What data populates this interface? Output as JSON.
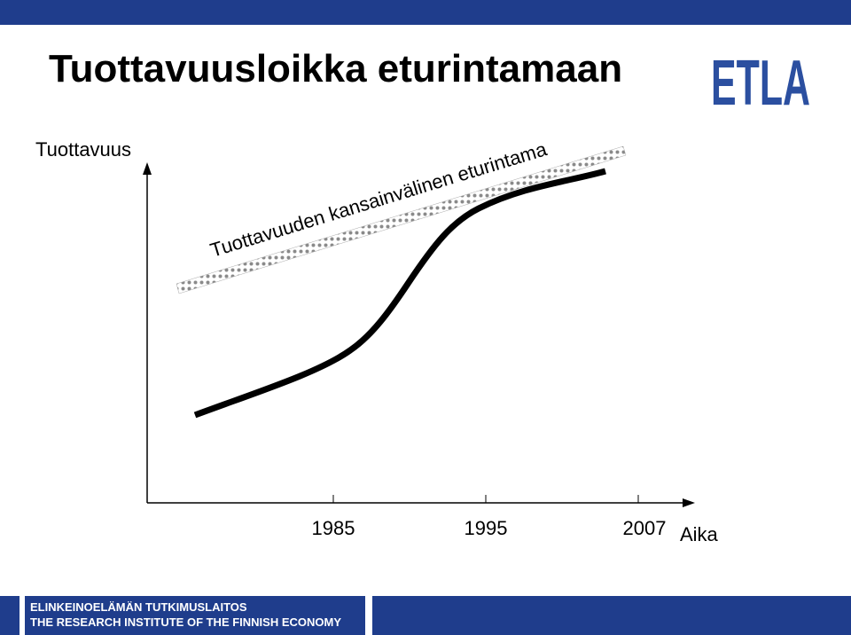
{
  "header": {
    "title": "Tuottavuusloikka eturintamaan",
    "logo": "ETLA"
  },
  "diagram": {
    "y_axis_label": "Tuottavuus",
    "x_axis_label": "Aika",
    "x_labels": [
      "1985",
      "1995",
      "2007"
    ],
    "frontier_label": "Tuottavuuden kansainvälinen eturintama"
  },
  "footer": {
    "line1": "ELINKEINOELÄMÄN TUTKIMUSLAITOS",
    "line2": "THE RESEARCH INSTITUTE OF THE FINNISH ECONOMY"
  }
}
